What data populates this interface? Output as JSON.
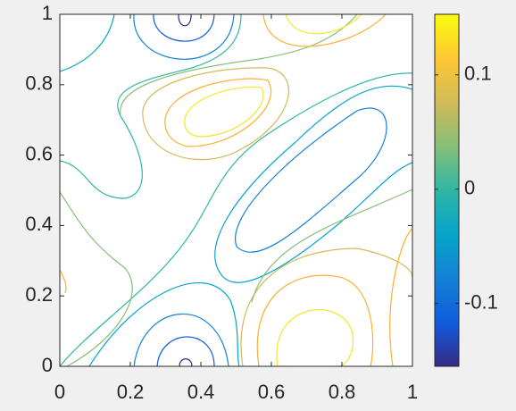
{
  "chart_data": {
    "type": "contour",
    "xlim": [
      0,
      1
    ],
    "ylim": [
      0,
      1
    ],
    "xticks": [
      0,
      0.2,
      0.4,
      0.6,
      0.8,
      1
    ],
    "yticks": [
      0,
      0.2,
      0.4,
      0.6,
      0.8,
      1
    ],
    "levels": [
      -0.12,
      -0.09,
      -0.06,
      -0.03,
      0,
      0.03,
      0.06,
      0.09,
      0.12
    ],
    "level_colors": [
      "#352a87",
      "#0f5cdd",
      "#1481d6",
      "#06a4ca",
      "#2eb7a4",
      "#87bf77",
      "#d1bb59",
      "#fbb032",
      "#f2e82a"
    ],
    "colorbar": true,
    "clim": [
      -0.155,
      0.153
    ],
    "colorbar_ticks": [
      -0.1,
      0,
      0.1
    ],
    "colormap": [
      "#352a87",
      "#0f5cdd",
      "#1481d6",
      "#06a4ca",
      "#2eb7a4",
      "#87bf77",
      "#d1bb59",
      "#fec832",
      "#f9fb0e"
    ]
  }
}
